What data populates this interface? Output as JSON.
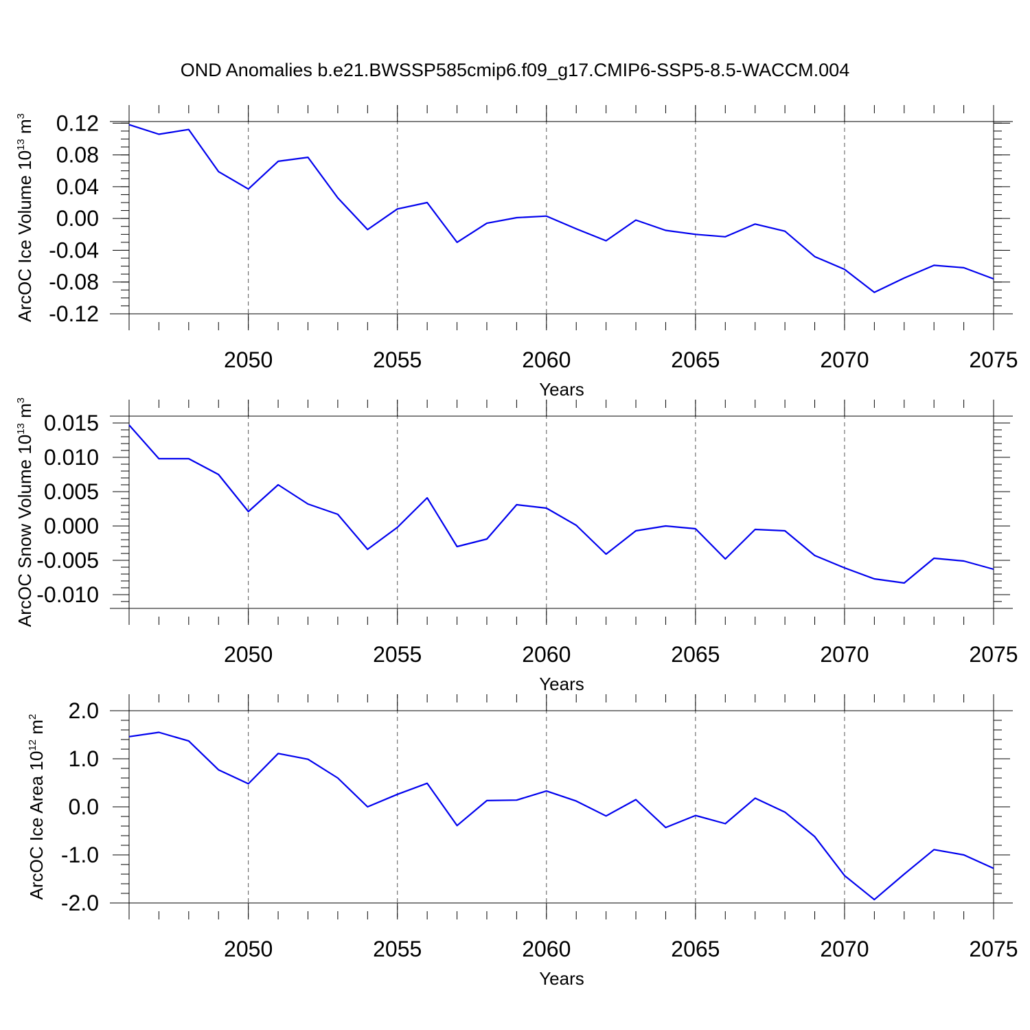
{
  "chart_data": {
    "title": "OND Anomalies b.e21.BWSSP585cmip6.f09_g17.CMIP6-SSP5-8.5-WACCM.004",
    "type": "line",
    "years": [
      2046,
      2047,
      2048,
      2049,
      2050,
      2051,
      2052,
      2053,
      2054,
      2055,
      2056,
      2057,
      2058,
      2059,
      2060,
      2061,
      2062,
      2063,
      2064,
      2065,
      2066,
      2067,
      2068,
      2069,
      2070,
      2071,
      2072,
      2073,
      2074,
      2075
    ],
    "panels": [
      {
        "id": "ice-volume",
        "ylabel": "ArcOC Ice Volume 10",
        "ylabel_sup": "13",
        "ylabel_unit": " m",
        "ylabel_unit_sup": "3",
        "xlabel": "Years",
        "xlim": [
          2046,
          2075
        ],
        "ylim": [
          -0.12,
          0.122
        ],
        "yticks": [
          -0.12,
          -0.08,
          -0.04,
          0.0,
          0.04,
          0.08,
          0.12
        ],
        "ytick_labels": [
          "-0.12",
          "-0.08",
          "-0.04",
          "0.00",
          "0.04",
          "0.08",
          "0.12"
        ],
        "yminor_step": 0.01,
        "xticks": [
          2050,
          2055,
          2060,
          2065,
          2070,
          2075
        ],
        "xtick_labels": [
          "2050",
          "2055",
          "2060",
          "2065",
          "2070",
          "2075"
        ],
        "grid": "vertical dashed",
        "values": [
          0.118,
          0.106,
          0.112,
          0.059,
          0.037,
          0.072,
          0.077,
          0.026,
          -0.014,
          0.012,
          0.02,
          -0.03,
          -0.006,
          0.001,
          0.003,
          -0.013,
          -0.028,
          -0.002,
          -0.015,
          -0.02,
          -0.023,
          -0.007,
          -0.016,
          -0.048,
          -0.064,
          -0.093,
          -0.075,
          -0.059,
          -0.062,
          -0.076
        ]
      },
      {
        "id": "snow-volume",
        "ylabel": "ArcOC Snow Volume 10",
        "ylabel_sup": "13",
        "ylabel_unit": " m",
        "ylabel_unit_sup": "3",
        "xlabel": "Years",
        "xlim": [
          2046,
          2075
        ],
        "ylim": [
          -0.012,
          0.016
        ],
        "yticks": [
          -0.01,
          -0.005,
          0.0,
          0.005,
          0.01,
          0.015
        ],
        "ytick_labels": [
          "-0.010",
          "-0.005",
          "0.000",
          "0.005",
          "0.010",
          "0.015"
        ],
        "yminor_step": 0.001,
        "xticks": [
          2050,
          2055,
          2060,
          2065,
          2070,
          2075
        ],
        "xtick_labels": [
          "2050",
          "2055",
          "2060",
          "2065",
          "2070",
          "2075"
        ],
        "grid": "vertical dashed",
        "values": [
          0.0147,
          0.0098,
          0.0098,
          0.0075,
          0.0021,
          0.006,
          0.0032,
          0.0017,
          -0.0034,
          -0.0002,
          0.0041,
          -0.003,
          -0.0019,
          0.0031,
          0.0026,
          0.0001,
          -0.0041,
          -0.0007,
          0.0,
          -0.0004,
          -0.0048,
          -0.0005,
          -0.0007,
          -0.0043,
          -0.0061,
          -0.0077,
          -0.0083,
          -0.0047,
          -0.0051,
          -0.0063
        ]
      },
      {
        "id": "ice-area",
        "ylabel": "ArcOC Ice Area 10",
        "ylabel_sup": "12",
        "ylabel_unit": " m",
        "ylabel_unit_sup": "2",
        "xlabel": "Years",
        "xlim": [
          2046,
          2075
        ],
        "ylim": [
          -2.0,
          2.0
        ],
        "yticks": [
          -2.0,
          -1.0,
          0.0,
          1.0,
          2.0
        ],
        "ytick_labels": [
          "-2.0",
          "-1.0",
          "0.0",
          "1.0",
          "2.0"
        ],
        "yminor_step": 0.2,
        "xticks": [
          2050,
          2055,
          2060,
          2065,
          2070,
          2075
        ],
        "xtick_labels": [
          "2050",
          "2055",
          "2060",
          "2065",
          "2070",
          "2075"
        ],
        "grid": "vertical dashed",
        "values": [
          1.46,
          1.55,
          1.37,
          0.77,
          0.48,
          1.11,
          0.99,
          0.6,
          0.0,
          0.26,
          0.49,
          -0.39,
          0.13,
          0.14,
          0.33,
          0.12,
          -0.19,
          0.15,
          -0.43,
          -0.18,
          -0.35,
          0.18,
          -0.11,
          -0.62,
          -1.43,
          -1.93,
          -1.4,
          -0.89,
          -1.0,
          -1.28
        ]
      }
    ]
  }
}
